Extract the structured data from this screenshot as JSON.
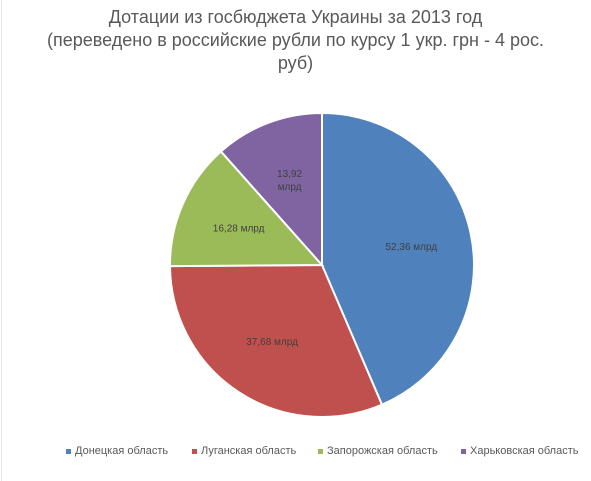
{
  "chart_data": {
    "type": "pie",
    "title": [
      "Дотации из госбюджета Украины за 2013 год",
      "(переведено в российские рубли по курсу 1 укр. грн - 4 рос.",
      "руб)"
    ],
    "unit": "млрд",
    "slices": [
      {
        "name": "Донецкая область",
        "value": 52.36,
        "label": [
          "52,36 млрд"
        ],
        "color": "#4f81bd"
      },
      {
        "name": "Луганская область",
        "value": 37.68,
        "label": [
          "37,68 млрд"
        ],
        "color": "#c0504d"
      },
      {
        "name": "Запорожская область",
        "value": 16.28,
        "label": [
          "16,28 млрд"
        ],
        "color": "#9bbb59"
      },
      {
        "name": "Харьковская область",
        "value": 13.92,
        "label": [
          "13,92",
          "млрд"
        ],
        "color": "#8064a2"
      }
    ],
    "legend_position": "bottom"
  }
}
